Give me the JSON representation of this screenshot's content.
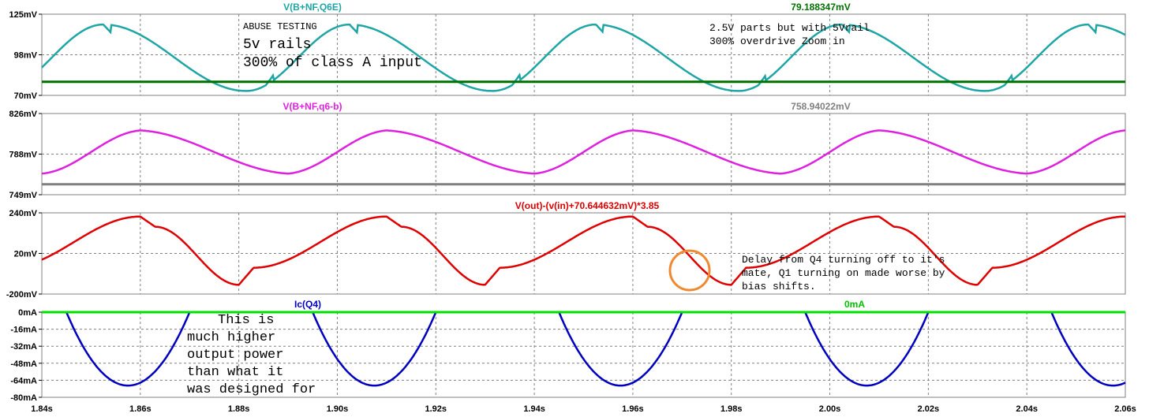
{
  "x_ticks": [
    "1.84s",
    "1.86s",
    "1.88s",
    "1.90s",
    "1.92s",
    "1.94s",
    "1.96s",
    "1.98s",
    "2.00s",
    "2.02s",
    "2.04s",
    "2.06s"
  ],
  "chart_data": [
    {
      "type": "line",
      "ylim": [
        70,
        125
      ],
      "y_ticks": [
        "125mV",
        "98mV",
        "70mV"
      ],
      "series": [
        {
          "name": "V(B+NF,Q6E)",
          "color": "#1fa5a5",
          "kind": "triangle-step",
          "min": 73,
          "max": 118,
          "period": 0.05,
          "phase": 0.0
        },
        {
          "name": "79.188347mV",
          "color": "#007000",
          "kind": "const",
          "value": 79.2
        }
      ]
    },
    {
      "type": "line",
      "ylim": [
        749,
        826
      ],
      "y_ticks": [
        "826mV",
        "788mV",
        "749mV"
      ],
      "series": [
        {
          "name": "V(B+NF,q6-b)",
          "color": "#e020e0",
          "kind": "triangle",
          "min": 769,
          "max": 810,
          "period": 0.05,
          "phase": 0.0
        },
        {
          "name": "758.94022mV",
          "color": "#808080",
          "kind": "const",
          "value": 758.9
        }
      ]
    },
    {
      "type": "line",
      "ylim": [
        -200,
        240
      ],
      "y_ticks": [
        "240mV",
        "20mV",
        "-200mV"
      ],
      "series": [
        {
          "name": "V(out)-(v(in)+70.644632mV)*3.85",
          "color": "#e00000",
          "kind": "triangle-step-out",
          "min": -150,
          "max": 220,
          "period": 0.05,
          "phase": 0.0
        }
      ]
    },
    {
      "type": "line",
      "ylim": [
        -80,
        0
      ],
      "y_ticks": [
        "0mA",
        "-16mA",
        "-32mA",
        "-48mA",
        "-64mA",
        "-80mA"
      ],
      "series": [
        {
          "name": "Ic(Q4)",
          "color": "#0000c0",
          "kind": "parabola",
          "min": -69,
          "period": 0.05,
          "phase": 0.0
        },
        {
          "name": "0mA",
          "color": "#00e000",
          "kind": "const",
          "value": 0
        }
      ]
    }
  ],
  "annotations": {
    "abuse_title": "ABUSE TESTING",
    "abuse_line1": "5v rails",
    "abuse_line2": "300% of class A input",
    "parts_line1": "2.5V parts but with 5Vrail",
    "parts_line2": "300% overdrive Zoom in",
    "delay_line1": "Delay from Q4 turning off to it's",
    "delay_line2": "mate, Q1 turning on made worse by",
    "delay_line3": "bias shifts.",
    "power_line1": "This is",
    "power_line2": "much higher",
    "power_line3": "output power",
    "power_line4": "than what it",
    "power_line5": "was designed for"
  }
}
